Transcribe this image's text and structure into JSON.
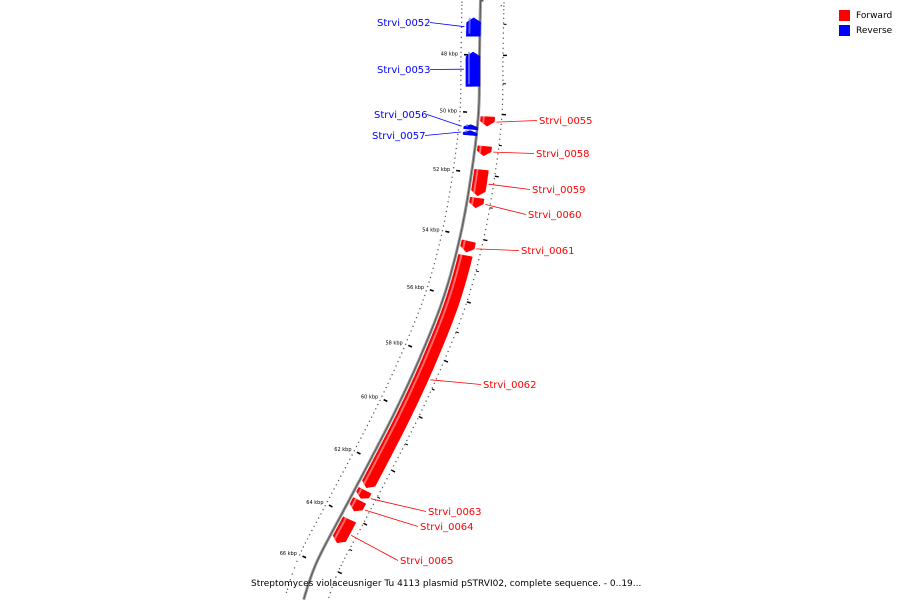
{
  "colors": {
    "forward": "#ff0000",
    "reverse": "#0000ff"
  },
  "legend": {
    "forward_label": "Forward",
    "reverse_label": "Reverse"
  },
  "caption": "Streptomyces violaceusniger Tu 4113 plasmid pSTRVI02, complete sequence. - 0..19...",
  "ticks": [
    {
      "label": "48 kbp",
      "kbp": 48
    },
    {
      "label": "50 kbp",
      "kbp": 50
    },
    {
      "label": "52 kbp",
      "kbp": 52
    },
    {
      "label": "54 kbp",
      "kbp": 54
    },
    {
      "label": "56 kbp",
      "kbp": 56
    },
    {
      "label": "58 kbp",
      "kbp": 58
    },
    {
      "label": "60 kbp",
      "kbp": 60
    },
    {
      "label": "62 kbp",
      "kbp": 62
    },
    {
      "label": "64 kbp",
      "kbp": 64
    },
    {
      "label": "66 kbp",
      "kbp": 66
    }
  ],
  "genes": [
    {
      "name": "Strvi_0052",
      "strand": "reverse",
      "start": 46.8,
      "end": 47.4
    },
    {
      "name": "Strvi_0053",
      "strand": "reverse",
      "start": 47.9,
      "end": 49.1
    },
    {
      "name": "Strvi_0056",
      "strand": "reverse",
      "start": 50.42,
      "end": 50.58
    },
    {
      "name": "Strvi_0057",
      "strand": "reverse",
      "start": 50.62,
      "end": 50.78
    },
    {
      "name": "Strvi_0055",
      "strand": "forward",
      "start": 50.1,
      "end": 50.42
    },
    {
      "name": "Strvi_0058",
      "strand": "forward",
      "start": 51.08,
      "end": 51.4
    },
    {
      "name": "Strvi_0059",
      "strand": "forward",
      "start": 51.85,
      "end": 52.7
    },
    {
      "name": "Strvi_0060",
      "strand": "forward",
      "start": 52.76,
      "end": 53.08
    },
    {
      "name": "Strvi_0061",
      "strand": "forward",
      "start": 54.15,
      "end": 54.5
    },
    {
      "name": "Strvi_0062",
      "strand": "forward",
      "start": 54.6,
      "end": 62.9
    },
    {
      "name": "Strvi_0063",
      "strand": "forward",
      "start": 63.0,
      "end": 63.3
    },
    {
      "name": "Strvi_0064",
      "strand": "forward",
      "start": 63.38,
      "end": 63.78
    },
    {
      "name": "Strvi_0065",
      "strand": "forward",
      "start": 64.1,
      "end": 65.0
    }
  ]
}
